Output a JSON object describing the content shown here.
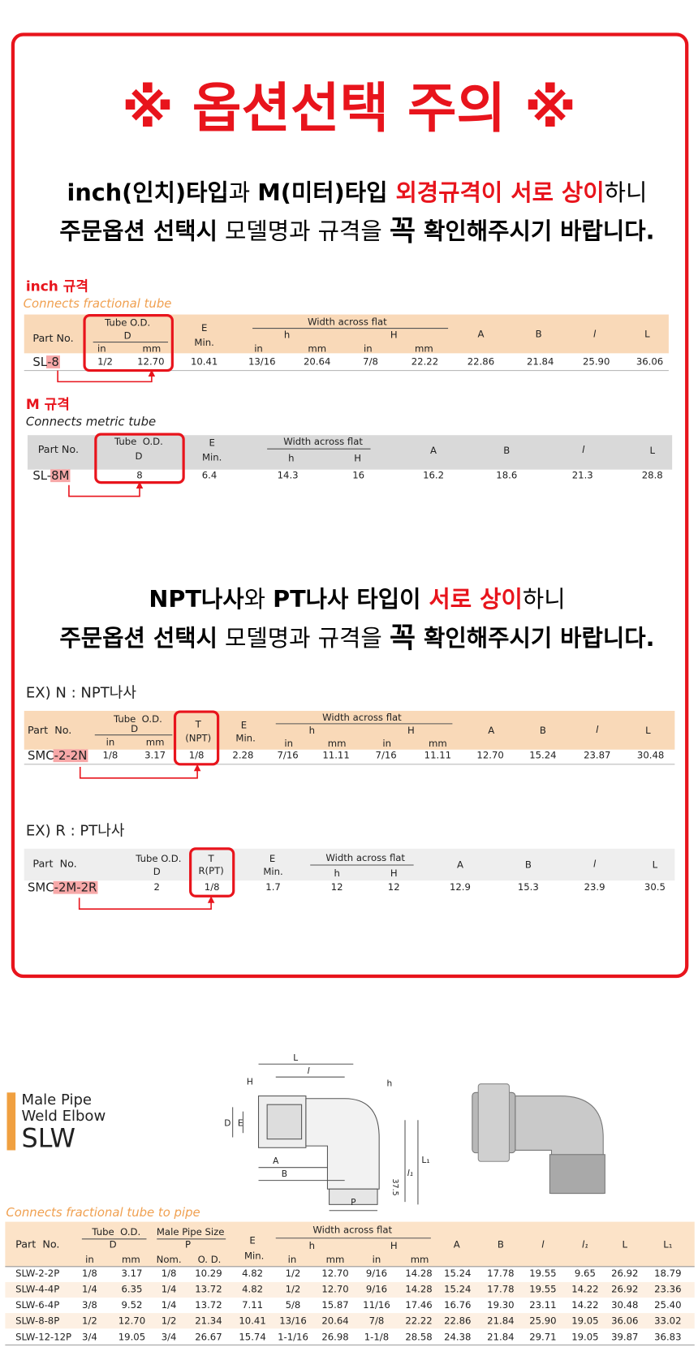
{
  "notice": {
    "title": "※ 옵션선택 주의 ※",
    "size_warning": {
      "line1": [
        "inch(인치)타입",
        "과 ",
        "M(미터)타입 ",
        "외경규격이 서로 상이",
        "하니"
      ],
      "line2": [
        "주문옵션 선택시",
        " 모델명과 규격을 ",
        "꼭",
        " 확인해주시기 바랍니다."
      ]
    },
    "inch_table": {
      "label": "inch 규격",
      "caption": "Connects fractional tube",
      "headers": {
        "part": "Part No.",
        "tube": "Tube O.D.",
        "d": "D",
        "e": "E",
        "min": "Min.",
        "waf": "Width across flat",
        "h": "h",
        "H": "H",
        "a": "A",
        "b": "B",
        "l": "l",
        "L": "L",
        "in": "in",
        "mm": "mm"
      },
      "part_no": [
        "SL",
        "-8"
      ],
      "row": [
        "1/2",
        "12.70",
        "10.41",
        "13/16",
        "20.64",
        "7/8",
        "22.22",
        "22.86",
        "21.84",
        "25.90",
        "36.06"
      ]
    },
    "metric_table": {
      "label": "M 규격",
      "caption": "Connects metric tube",
      "headers": {
        "part": "Part No.",
        "tube": "Tube  O.D.",
        "d": "D",
        "e": "E",
        "min": "Min.",
        "waf": "Width across flat",
        "h": "h",
        "H": "H",
        "a": "A",
        "b": "B",
        "l": "l",
        "L": "L"
      },
      "part_no": [
        "SL-",
        "8M"
      ],
      "row": [
        "8",
        "6.4",
        "14.3",
        "16",
        "16.2",
        "18.6",
        "21.3",
        "28.8"
      ]
    },
    "thread_warning": {
      "line1": [
        "NPT나사",
        "와 ",
        "PT나사 타입이 ",
        "서로 상이",
        "하니"
      ],
      "line2": [
        "주문옵션 선택시",
        " 모델명과 규격을 ",
        "꼭",
        " 확인해주시기 바랍니다."
      ]
    },
    "npt_table": {
      "label": "EX) N : NPT나사",
      "headers": {
        "part": "Part  No.",
        "tube": "Tube  O.D.",
        "d": "D",
        "t": "T",
        "t_sub": "(NPT)",
        "e": "E",
        "min": "Min.",
        "waf": "Width across flat",
        "h": "h",
        "H": "H",
        "a": "A",
        "b": "B",
        "l": "l",
        "L": "L",
        "in": "in",
        "mm": "mm"
      },
      "part_no": [
        "SMC",
        "-2-2N"
      ],
      "row": [
        "1/8",
        "3.17",
        "1/8",
        "2.28",
        "7/16",
        "11.11",
        "7/16",
        "11.11",
        "12.70",
        "15.24",
        "23.87",
        "30.48"
      ]
    },
    "pt_table": {
      "label": "EX) R : PT나사",
      "headers": {
        "part": "Part  No.",
        "tube": "Tube O.D.",
        "d": "D",
        "t": "T",
        "t_sub": "R(PT)",
        "e": "E",
        "min": "Min.",
        "waf": "Width across flat",
        "h": "h",
        "H": "H",
        "a": "A",
        "b": "B",
        "l": "l",
        "L": "L"
      },
      "part_no": [
        "SMC",
        "-2M-2R"
      ],
      "row": [
        "2",
        "1/8",
        "1.7",
        "12",
        "12",
        "12.9",
        "15.3",
        "23.9",
        "30.5"
      ]
    }
  },
  "product": {
    "name_line1": "Male Pipe",
    "name_line2": "Weld Elbow",
    "code": "SLW",
    "diagram": {
      "L": "L",
      "l": "l",
      "H": "H",
      "h": "h",
      "D": "D",
      "E": "E",
      "A": "A",
      "B": "B",
      "L1": "L₁",
      "l1": "l₁",
      "angle": "37.5",
      "P": "P"
    },
    "caption": "Connects fractional tube to pipe",
    "headers": {
      "part": "Part  No.",
      "tube": "Tube  O.D.",
      "d": "D",
      "pipe": "Male Pipe Size",
      "p": "P",
      "nom": "Nom.",
      "od": "O. D.",
      "e": "E",
      "min": "Min.",
      "waf": "Width across flat",
      "h": "h",
      "H": "H",
      "a": "A",
      "b": "B",
      "l": "l",
      "l1": "l₁",
      "L": "L",
      "L1": "L₁",
      "in": "in",
      "mm": "mm"
    },
    "rows": [
      [
        "SLW-2-2P",
        "1/8",
        "3.17",
        "1/8",
        "10.29",
        "4.82",
        "1/2",
        "12.70",
        "9/16",
        "14.28",
        "15.24",
        "17.78",
        "19.55",
        "9.65",
        "26.92",
        "18.79"
      ],
      [
        "SLW-4-4P",
        "1/4",
        "6.35",
        "1/4",
        "13.72",
        "4.82",
        "1/2",
        "12.70",
        "9/16",
        "14.28",
        "15.24",
        "17.78",
        "19.55",
        "14.22",
        "26.92",
        "23.36"
      ],
      [
        "SLW-6-4P",
        "3/8",
        "9.52",
        "1/4",
        "13.72",
        "7.11",
        "5/8",
        "15.87",
        "11/16",
        "17.46",
        "16.76",
        "19.30",
        "23.11",
        "14.22",
        "30.48",
        "25.40"
      ],
      [
        "SLW-8-8P",
        "1/2",
        "12.70",
        "1/2",
        "21.34",
        "10.41",
        "13/16",
        "20.64",
        "7/8",
        "22.22",
        "22.86",
        "21.84",
        "25.90",
        "19.05",
        "36.06",
        "33.02"
      ],
      [
        "SLW-12-12P",
        "3/4",
        "19.05",
        "3/4",
        "26.67",
        "15.74",
        "1-1/16",
        "26.98",
        "1-1/8",
        "28.58",
        "24.38",
        "21.84",
        "29.71",
        "19.05",
        "39.87",
        "36.83"
      ]
    ]
  }
}
